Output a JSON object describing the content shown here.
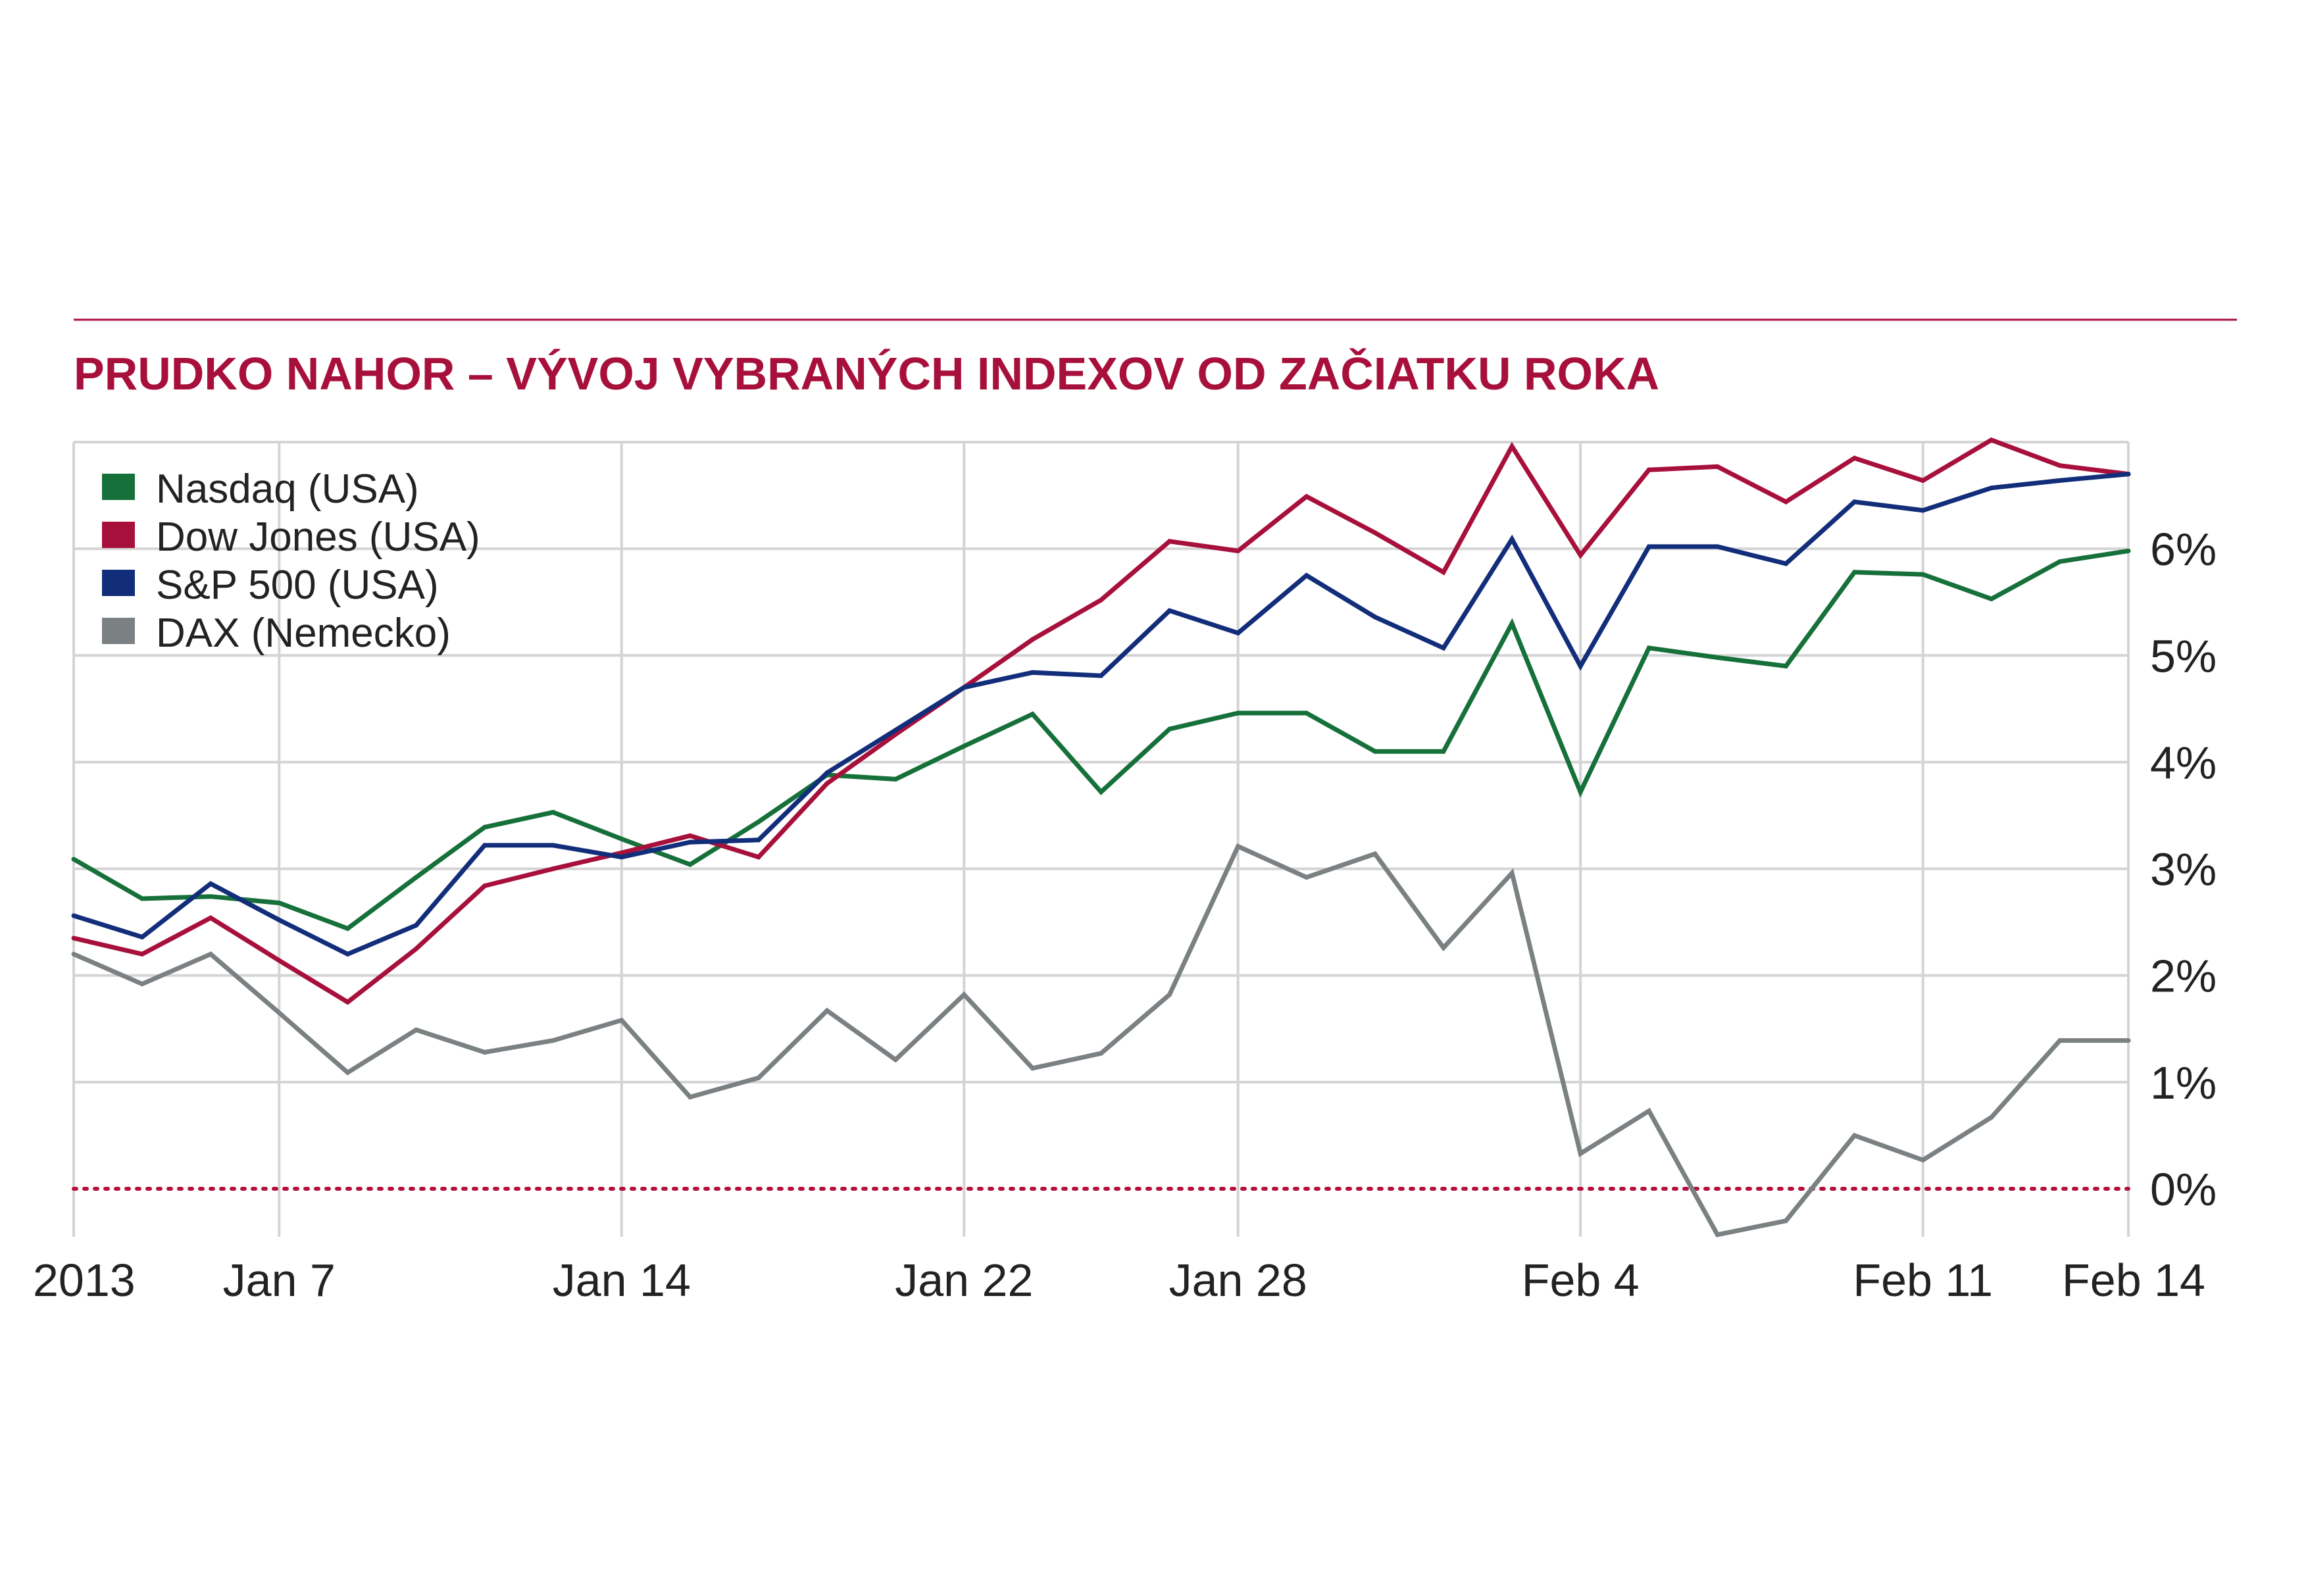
{
  "chart_data": {
    "type": "line",
    "title": "PRUDKO NAHOR – VÝVOJ VYBRANÝCH INDEXOV OD ZAČIATKU ROKA",
    "xlabel": "",
    "ylabel": "",
    "x_tick_labels": [
      "2013",
      "Jan 7",
      "Jan 14",
      "Jan 22",
      "Jan 28",
      "Feb 4",
      "Feb 11",
      "Feb 14"
    ],
    "y_tick_labels": [
      "0%",
      "1%",
      "2%",
      "3%",
      "4%",
      "5%",
      "6%"
    ],
    "ylim": [
      -0.45,
      7.0
    ],
    "grid": true,
    "legend_position": "top-left",
    "reference_line": {
      "value": 0,
      "style": "dotted",
      "color": "#b5103c"
    },
    "x": [
      "Jan 2",
      "Jan 3",
      "Jan 4",
      "Jan 7",
      "Jan 8",
      "Jan 9",
      "Jan 10",
      "Jan 11",
      "Jan 14",
      "Jan 15",
      "Jan 16",
      "Jan 17",
      "Jan 18",
      "Jan 22",
      "Jan 23",
      "Jan 24",
      "Jan 25",
      "Jan 28",
      "Jan 29",
      "Jan 30",
      "Jan 31",
      "Feb 1",
      "Feb 4",
      "Feb 5",
      "Feb 6",
      "Feb 7",
      "Feb 8",
      "Feb 11",
      "Feb 12",
      "Feb 13",
      "Feb 14"
    ],
    "series": [
      {
        "name": "Nasdaq (USA)",
        "color": "#16703a",
        "values": [
          3.09,
          2.72,
          2.74,
          2.68,
          2.44,
          2.92,
          3.39,
          3.53,
          3.28,
          3.04,
          3.44,
          3.88,
          3.84,
          4.15,
          4.45,
          3.72,
          4.31,
          4.46,
          4.46,
          4.1,
          4.1,
          5.3,
          3.72,
          5.07,
          4.98,
          4.9,
          5.78,
          5.76,
          5.53,
          5.88,
          5.98
        ]
      },
      {
        "name": "Dow Jones (USA)",
        "color": "#a8103c",
        "values": [
          2.35,
          2.2,
          2.54,
          2.14,
          1.75,
          2.25,
          2.84,
          3.0,
          3.15,
          3.31,
          3.11,
          3.8,
          4.26,
          4.7,
          5.15,
          5.52,
          6.07,
          5.98,
          6.49,
          6.15,
          5.78,
          6.96,
          5.94,
          6.74,
          6.77,
          6.44,
          6.85,
          6.64,
          7.02,
          6.78,
          6.7
        ]
      },
      {
        "name": "S&P 500 (USA)",
        "color": "#122d7a",
        "values": [
          2.56,
          2.36,
          2.86,
          2.52,
          2.2,
          2.47,
          3.22,
          3.22,
          3.11,
          3.25,
          3.27,
          3.9,
          4.3,
          4.7,
          4.84,
          4.81,
          5.42,
          5.21,
          5.75,
          5.36,
          5.07,
          6.09,
          4.9,
          6.02,
          6.02,
          5.86,
          6.44,
          6.36,
          6.57,
          6.64,
          6.7
        ]
      },
      {
        "name": "DAX (Nemecko)",
        "color": "#7b8082",
        "values": [
          2.2,
          1.92,
          2.2,
          1.65,
          1.09,
          1.49,
          1.28,
          1.39,
          1.58,
          0.86,
          1.04,
          1.67,
          1.21,
          1.82,
          1.13,
          1.27,
          1.82,
          3.21,
          2.92,
          3.14,
          2.26,
          2.96,
          0.33,
          0.73,
          -0.43,
          -0.3,
          0.5,
          0.27,
          0.67,
          1.39,
          1.39
        ]
      }
    ]
  }
}
